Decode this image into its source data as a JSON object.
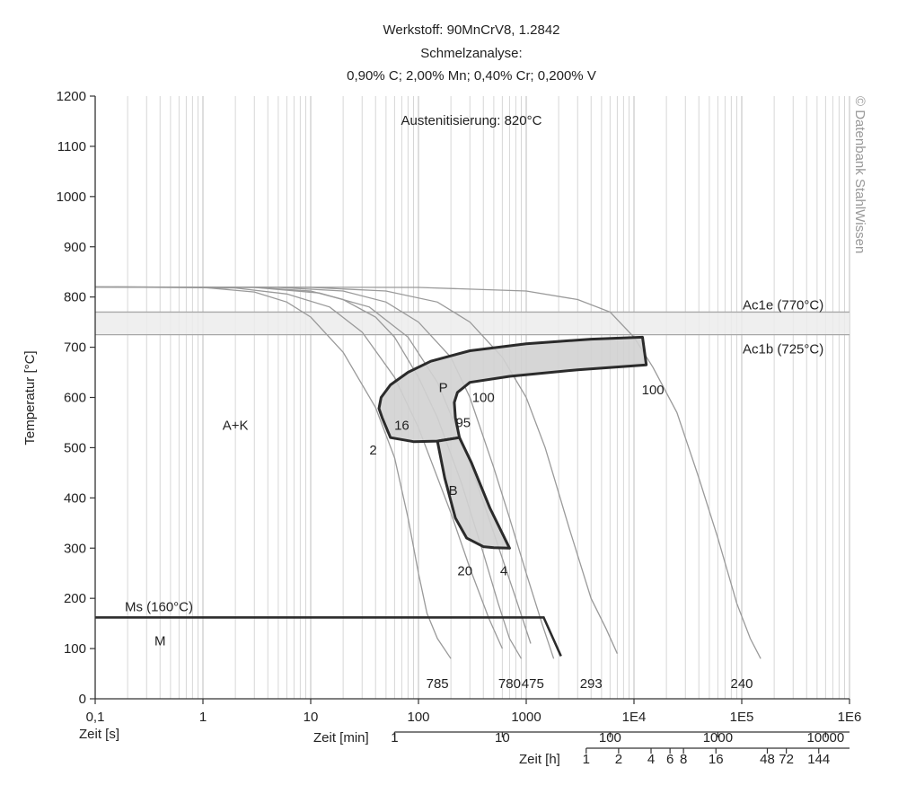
{
  "chart_data": {
    "type": "line",
    "title_lines": [
      "Werkstoff: 90MnCrV8, 1.2842",
      "Schmelzanalyse:",
      "0,90% C; 2,00% Mn; 0,40% Cr; 0,200% V"
    ],
    "annotation_austenitization": "Austenitisierung: 820°C",
    "ylabel": "Temperatur [°C]",
    "ylim": [
      0,
      1200
    ],
    "yticks": [
      "0",
      "100",
      "200",
      "300",
      "400",
      "500",
      "600",
      "700",
      "800",
      "900",
      "1000",
      "1100",
      "1200"
    ],
    "x_scale": "log",
    "xlim_s": [
      0.1,
      1000000
    ],
    "x_axes": {
      "seconds": {
        "label": "Zeit [s]",
        "ticks": [
          {
            "v": 0.1,
            "t": "0,1"
          },
          {
            "v": 1,
            "t": "1"
          },
          {
            "v": 10,
            "t": "10"
          },
          {
            "v": 100,
            "t": "100"
          },
          {
            "v": 1000,
            "t": "1000"
          },
          {
            "v": 10000,
            "t": "1E4"
          },
          {
            "v": 100000,
            "t": "1E5"
          },
          {
            "v": 1000000,
            "t": "1E6"
          }
        ]
      },
      "minutes": {
        "label": "Zeit [min]",
        "ticks": [
          {
            "v": 1,
            "t": "1"
          },
          {
            "v": 10,
            "t": "10"
          },
          {
            "v": 100,
            "t": "100"
          },
          {
            "v": 1000,
            "t": "1000"
          },
          {
            "v": 10000,
            "t": "10000"
          }
        ]
      },
      "hours": {
        "label": "Zeit [h]",
        "ticks": [
          {
            "v": 1,
            "t": "1"
          },
          {
            "v": 2,
            "t": "2"
          },
          {
            "v": 4,
            "t": "4"
          },
          {
            "v": 6,
            "t": "6"
          },
          {
            "v": 8,
            "t": "8"
          },
          {
            "v": 16,
            "t": "16"
          },
          {
            "v": 48,
            "t": "48"
          },
          {
            "v": 72,
            "t": "72"
          },
          {
            "v": 144,
            "t": "144"
          }
        ]
      }
    },
    "reference_lines": [
      {
        "name": "Ac1e",
        "label": "Ac1e (770°C)",
        "y": 770
      },
      {
        "name": "Ac1b",
        "label": "Ac1b (725°C)",
        "y": 725
      },
      {
        "name": "Ms",
        "label": "Ms (160°C)",
        "y": 160
      }
    ],
    "region_labels": [
      {
        "text": "A+K",
        "x": 2.0,
        "y": 545
      },
      {
        "text": "M",
        "x": 0.4,
        "y": 115
      },
      {
        "text": "P",
        "x": 170,
        "y": 620
      },
      {
        "text": "B",
        "x": 210,
        "y": 415
      }
    ],
    "phase_fractions": [
      {
        "text": "2",
        "x": 38,
        "y": 495
      },
      {
        "text": "16",
        "x": 70,
        "y": 545
      },
      {
        "text": "95",
        "x": 260,
        "y": 550
      },
      {
        "text": "100",
        "x": 400,
        "y": 600
      },
      {
        "text": "100",
        "x": 15000,
        "y": 615
      },
      {
        "text": "20",
        "x": 270,
        "y": 255
      },
      {
        "text": "4",
        "x": 620,
        "y": 255
      }
    ],
    "cooling_curves": [
      {
        "hardness": "785",
        "label_x": 150,
        "points": [
          [
            0.1,
            820
          ],
          [
            1,
            819
          ],
          [
            3,
            810
          ],
          [
            6,
            790
          ],
          [
            10,
            760
          ],
          [
            20,
            690
          ],
          [
            40,
            580
          ],
          [
            60,
            480
          ],
          [
            80,
            360
          ],
          [
            100,
            250
          ],
          [
            120,
            170
          ],
          [
            150,
            120
          ],
          [
            200,
            80
          ]
        ]
      },
      {
        "hardness": "780",
        "label_x": 700,
        "points": [
          [
            0.1,
            820
          ],
          [
            3,
            819
          ],
          [
            10,
            812
          ],
          [
            20,
            795
          ],
          [
            40,
            760
          ],
          [
            60,
            720
          ],
          [
            100,
            640
          ],
          [
            150,
            560
          ],
          [
            250,
            430
          ],
          [
            400,
            290
          ],
          [
            550,
            190
          ],
          [
            700,
            120
          ],
          [
            900,
            80
          ]
        ]
      },
      {
        "hardness": "475",
        "label_x": 1150,
        "points": [
          [
            0.1,
            820
          ],
          [
            5,
            819
          ],
          [
            20,
            812
          ],
          [
            50,
            790
          ],
          [
            100,
            750
          ],
          [
            200,
            680
          ],
          [
            300,
            600
          ],
          [
            500,
            460
          ],
          [
            700,
            360
          ],
          [
            1000,
            250
          ],
          [
            1400,
            150
          ],
          [
            1800,
            80
          ]
        ]
      },
      {
        "hardness": "293",
        "label_x": 4000,
        "points": [
          [
            0.1,
            820
          ],
          [
            10,
            819
          ],
          [
            50,
            812
          ],
          [
            150,
            790
          ],
          [
            300,
            750
          ],
          [
            600,
            680
          ],
          [
            1000,
            600
          ],
          [
            1500,
            500
          ],
          [
            2500,
            340
          ],
          [
            4000,
            200
          ],
          [
            5500,
            140
          ],
          [
            7000,
            90
          ]
        ]
      },
      {
        "hardness": "240",
        "label_x": 100000,
        "points": [
          [
            0.1,
            820
          ],
          [
            100,
            819
          ],
          [
            1000,
            812
          ],
          [
            3000,
            795
          ],
          [
            6000,
            770
          ],
          [
            10000,
            720
          ],
          [
            15000,
            660
          ],
          [
            25000,
            570
          ],
          [
            40000,
            440
          ],
          [
            60000,
            320
          ],
          [
            90000,
            190
          ],
          [
            120000,
            120
          ],
          [
            150000,
            80
          ]
        ]
      }
    ],
    "extra_cooling_curves": [
      [
        [
          0.1,
          820
        ],
        [
          2,
          818
        ],
        [
          6,
          806
        ],
        [
          15,
          780
        ],
        [
          30,
          730
        ],
        [
          60,
          640
        ],
        [
          100,
          540
        ],
        [
          200,
          370
        ],
        [
          300,
          260
        ],
        [
          450,
          160
        ],
        [
          600,
          100
        ]
      ],
      [
        [
          0.1,
          820
        ],
        [
          3,
          819
        ],
        [
          12,
          808
        ],
        [
          35,
          780
        ],
        [
          80,
          720
        ],
        [
          150,
          630
        ],
        [
          280,
          490
        ],
        [
          500,
          330
        ],
        [
          800,
          200
        ],
        [
          1100,
          110
        ]
      ]
    ],
    "transformation_regions": [
      {
        "name": "P",
        "outline": [
          [
            46,
            560
          ],
          [
            43,
            578
          ],
          [
            45,
            600
          ],
          [
            55,
            625
          ],
          [
            80,
            650
          ],
          [
            130,
            672
          ],
          [
            300,
            693
          ],
          [
            1000,
            707
          ],
          [
            4000,
            716
          ],
          [
            12000,
            720
          ],
          [
            13000,
            665
          ],
          [
            3000,
            655
          ],
          [
            700,
            642
          ],
          [
            300,
            630
          ],
          [
            230,
            610
          ],
          [
            215,
            590
          ],
          [
            220,
            560
          ],
          [
            240,
            520
          ],
          [
            150,
            513
          ],
          [
            90,
            512
          ],
          [
            55,
            520
          ],
          [
            46,
            560
          ]
        ]
      },
      {
        "name": "B",
        "outline": [
          [
            150,
            513
          ],
          [
            240,
            520
          ],
          [
            310,
            470
          ],
          [
            460,
            380
          ],
          [
            700,
            300
          ],
          [
            500,
            301
          ],
          [
            400,
            303
          ],
          [
            280,
            320
          ],
          [
            220,
            360
          ],
          [
            175,
            440
          ],
          [
            150,
            513
          ]
        ]
      }
    ],
    "ms_line": {
      "points": [
        [
          0.1,
          162
        ],
        [
          1450,
          162
        ],
        [
          2100,
          85
        ]
      ]
    },
    "copyright": "© Datenbank StahlWissen"
  }
}
